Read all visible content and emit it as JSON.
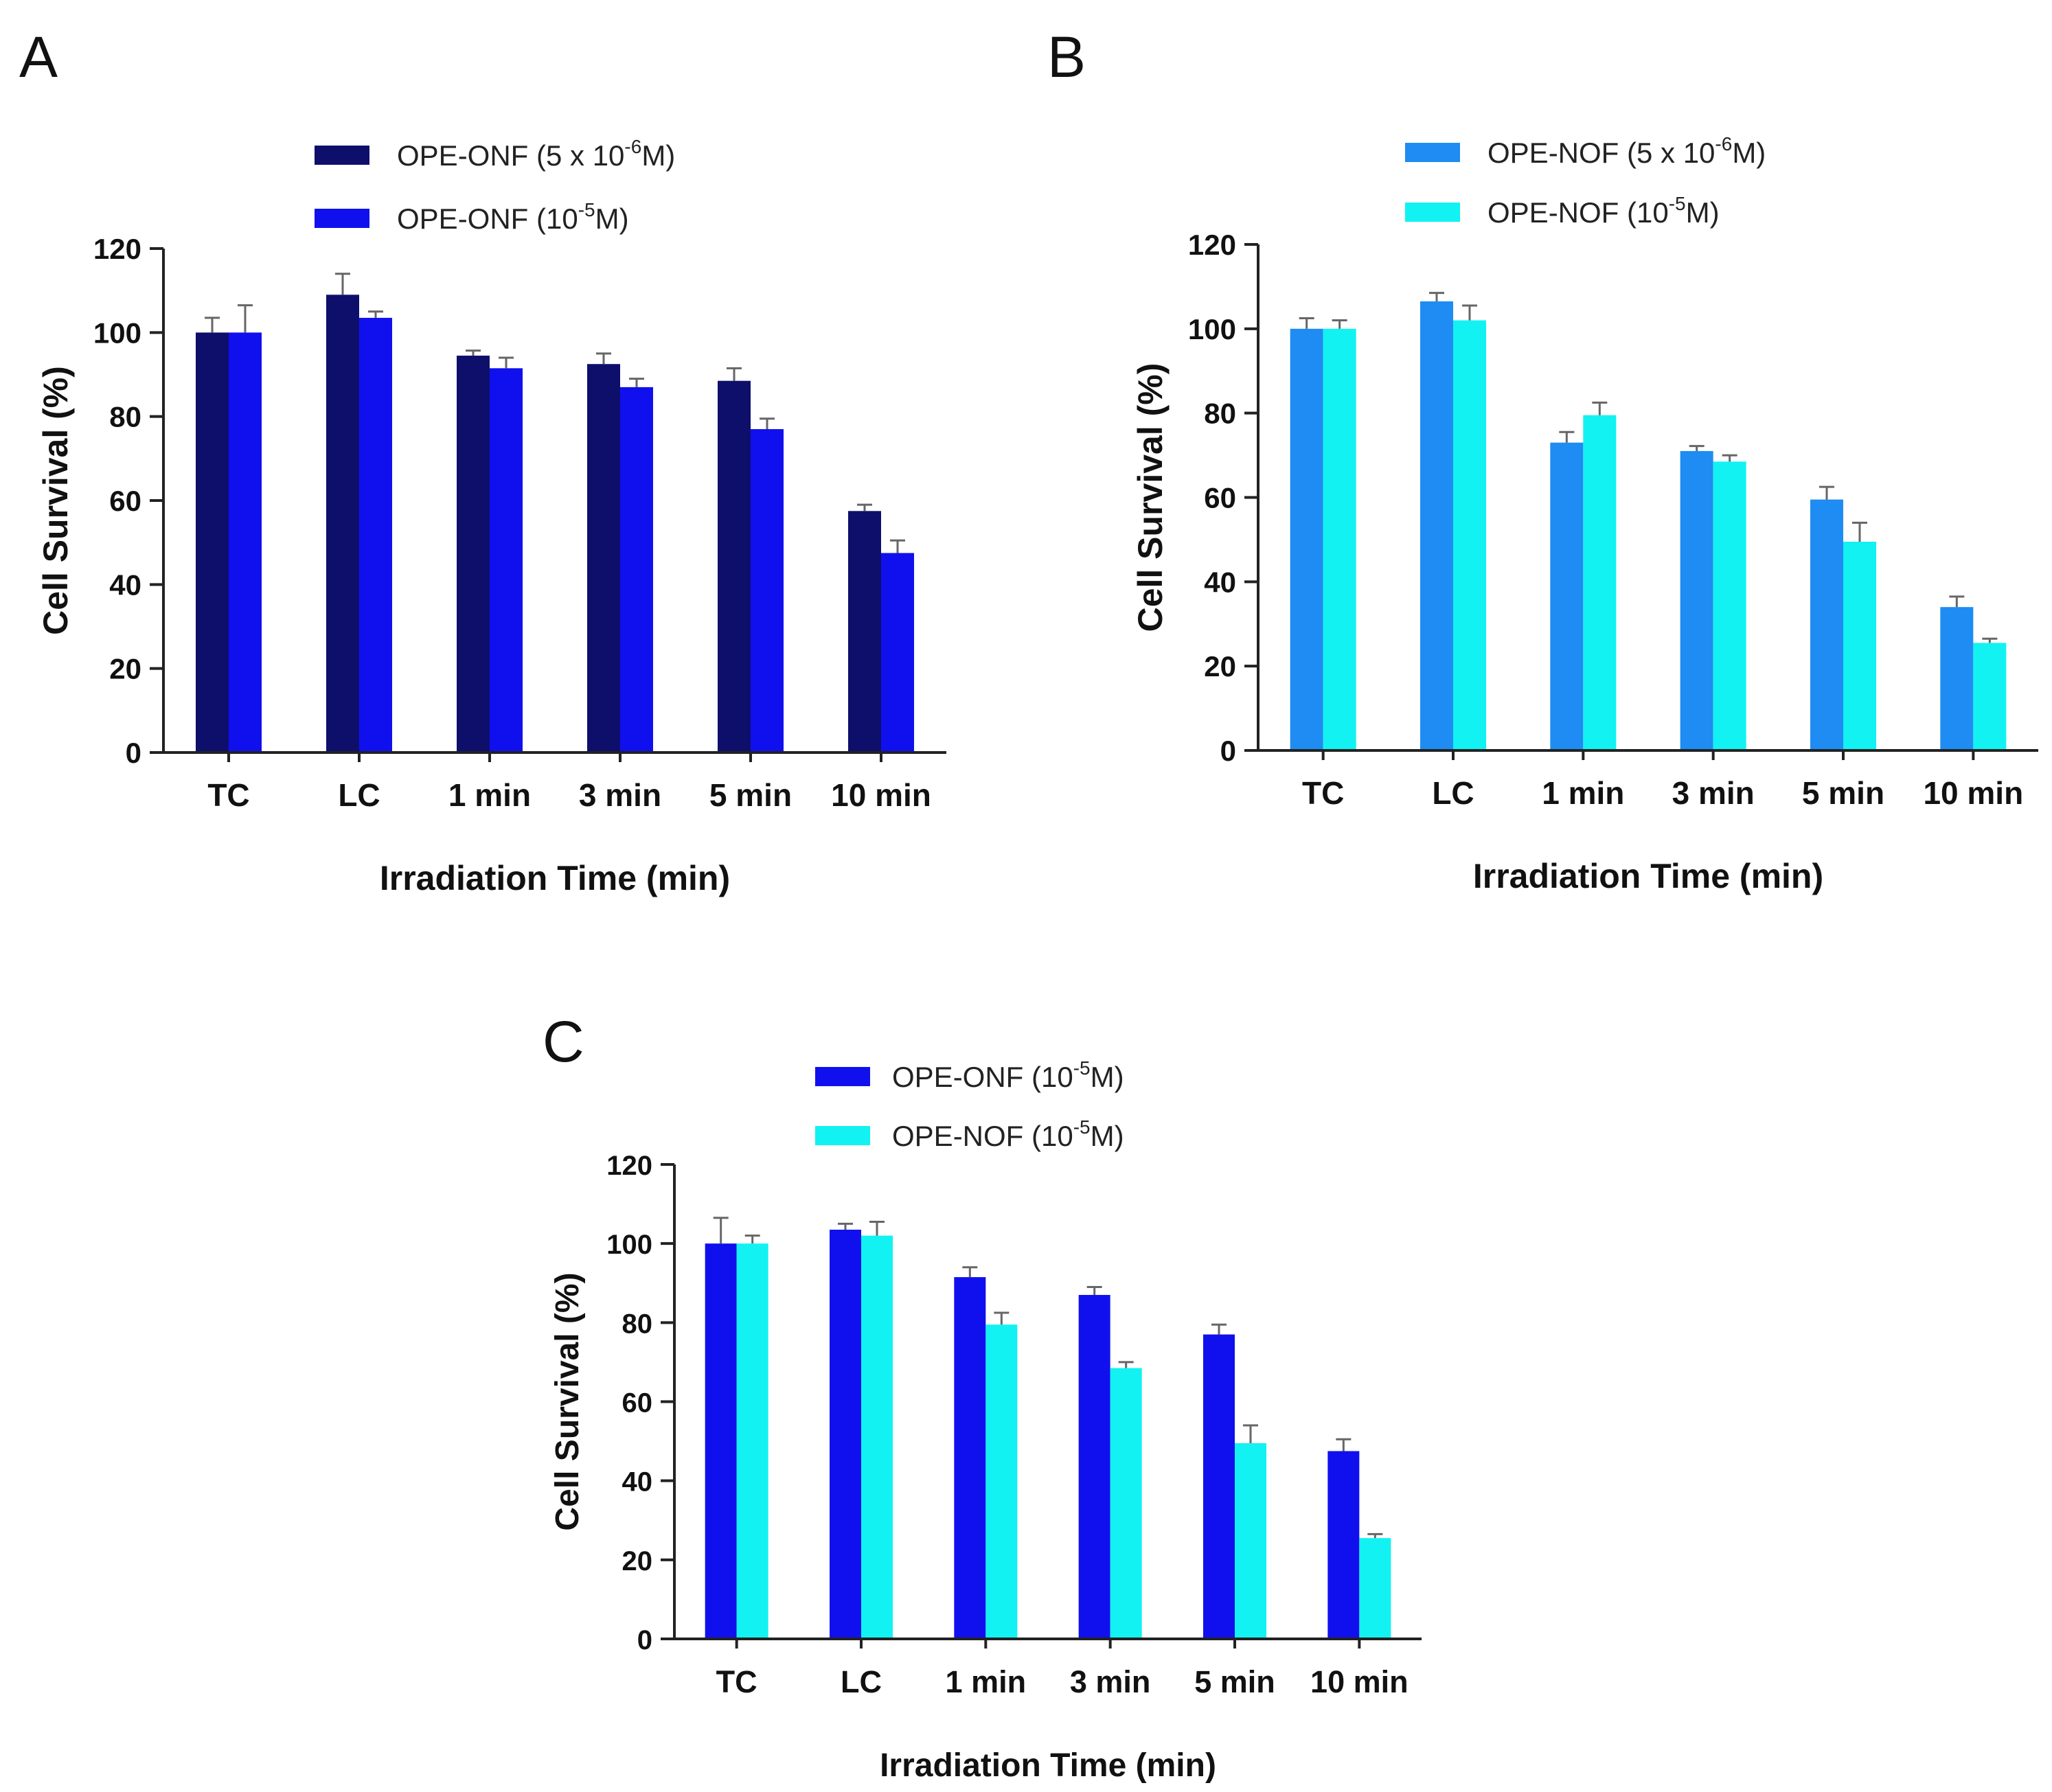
{
  "chart_data": [
    {
      "panel_label": "A",
      "type": "bar",
      "xlabel": "Irradiation Time (min)",
      "ylabel": "Cell Survival (%)",
      "ylim": [
        0,
        120
      ],
      "yticks": [
        "0",
        "20",
        "40",
        "60",
        "80",
        "100",
        "120"
      ],
      "categories": [
        "TC",
        "LC",
        "1 min",
        "3 min",
        "5 min",
        "10 min"
      ],
      "legend_position": "top-center",
      "series": [
        {
          "name_main": "OPE-ONF (5 x 10",
          "name_sup": "-6",
          "name_end": "M)",
          "color": "#0d0f6b",
          "values": [
            100,
            109,
            94.5,
            92.5,
            88.5,
            57.5
          ],
          "errors": [
            3.5,
            5,
            1.2,
            2.5,
            3,
            1.5
          ]
        },
        {
          "name_main": "OPE-ONF (10",
          "name_sup": "-5",
          "name_end": "M)",
          "color": "#1010ee",
          "values": [
            100,
            103.5,
            91.5,
            87,
            77,
            47.5
          ],
          "errors": [
            6.5,
            1.5,
            2.5,
            2,
            2.5,
            3
          ]
        }
      ]
    },
    {
      "panel_label": "B",
      "type": "bar",
      "xlabel": "Irradiation Time (min)",
      "ylabel": "Cell Survival (%)",
      "ylim": [
        0,
        120
      ],
      "yticks": [
        "0",
        "20",
        "40",
        "60",
        "80",
        "100",
        "120"
      ],
      "categories": [
        "TC",
        "LC",
        "1 min",
        "3 min",
        "5 min",
        "10 min"
      ],
      "legend_position": "top-center",
      "series": [
        {
          "name_main": "OPE-NOF (5 x 10",
          "name_sup": "-6",
          "name_end": "M)",
          "color": "#1e8cf2",
          "values": [
            100,
            106.5,
            73,
            71,
            59.5,
            34
          ],
          "errors": [
            2.5,
            2,
            2.5,
            1.2,
            3,
            2.5
          ]
        },
        {
          "name_main": "OPE-NOF (10",
          "name_sup": "-5",
          "name_end": "M)",
          "color": "#12f2f2",
          "values": [
            100,
            102,
            79.5,
            68.5,
            49.5,
            25.5
          ],
          "errors": [
            2,
            3.5,
            3,
            1.5,
            4.5,
            1
          ]
        }
      ]
    },
    {
      "panel_label": "C",
      "type": "bar",
      "xlabel": "Irradiation Time (min)",
      "ylabel": "Cell Survival (%)",
      "ylim": [
        0,
        120
      ],
      "yticks": [
        "0",
        "20",
        "40",
        "60",
        "80",
        "100",
        "120"
      ],
      "categories": [
        "TC",
        "LC",
        "1 min",
        "3 min",
        "5 min",
        "10 min"
      ],
      "legend_position": "top-left",
      "series": [
        {
          "name_main": "OPE-ONF (10",
          "name_sup": "-5",
          "name_end": "M)",
          "color": "#1010ee",
          "values": [
            100,
            103.5,
            91.5,
            87,
            77,
            47.5
          ],
          "errors": [
            6.5,
            1.5,
            2.5,
            2,
            2.5,
            3
          ]
        },
        {
          "name_main": "OPE-NOF (10",
          "name_sup": "-5",
          "name_end": "M)",
          "color": "#12f2f2",
          "values": [
            100,
            102,
            79.5,
            68.5,
            49.5,
            25.5
          ],
          "errors": [
            2,
            3.5,
            3,
            1.5,
            4.5,
            1
          ]
        }
      ]
    }
  ]
}
